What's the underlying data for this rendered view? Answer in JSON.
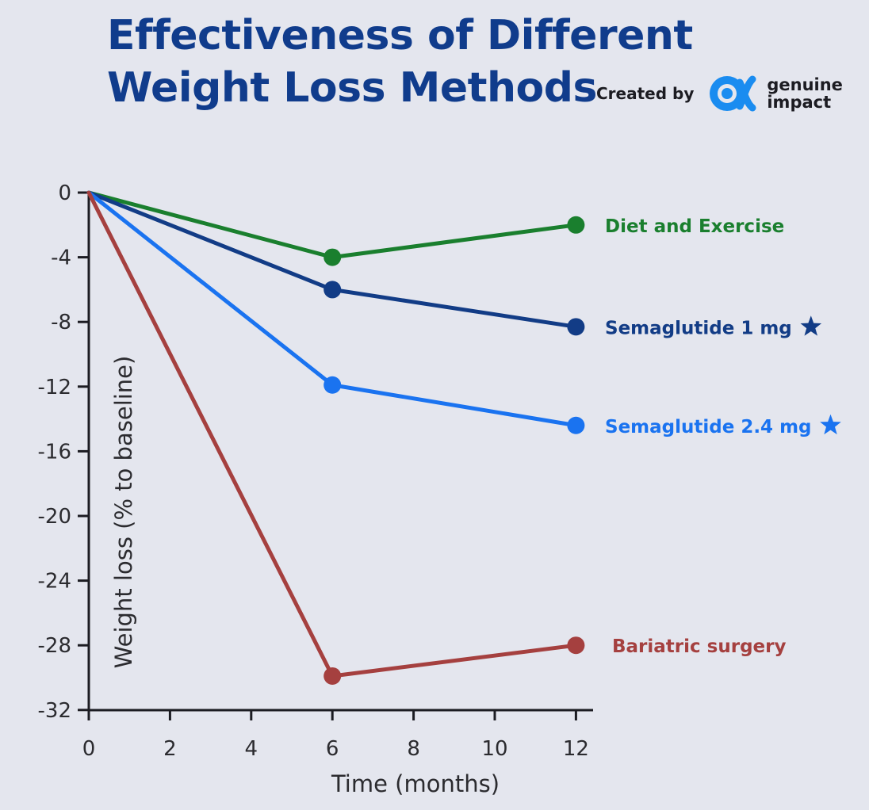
{
  "header": {
    "title_line1": "Effectiveness of Different",
    "title_line2": "Weight Loss Methods",
    "credit_label": "Created by",
    "brand_line1": "genuine",
    "brand_line2": "impact",
    "brand_icon": "genuine-impact-logo-icon"
  },
  "chart_data": {
    "type": "line",
    "xlabel": "Time (months)",
    "ylabel": "Weight loss (% to baseline)",
    "xlim": [
      0,
      12.4
    ],
    "ylim": [
      -32,
      0
    ],
    "xticks": [
      0,
      2,
      4,
      6,
      8,
      10,
      12
    ],
    "yticks": [
      0,
      -4,
      -8,
      -12,
      -16,
      -20,
      -24,
      -28,
      -32
    ],
    "grid": false,
    "legend": "direct labels at line ends",
    "series": [
      {
        "name": "Diet and Exercise",
        "color": "#1a7f2e",
        "marker_icon": null,
        "x": [
          0,
          6,
          12
        ],
        "y": [
          0,
          -4,
          -2
        ]
      },
      {
        "name": "Semaglutide 1 mg",
        "color": "#123c86",
        "marker_icon": "star-icon",
        "x": [
          0,
          6,
          12
        ],
        "y": [
          0,
          -6,
          -8.3
        ]
      },
      {
        "name": "Semaglutide 2.4 mg",
        "color": "#1a73f0",
        "marker_icon": "star-icon",
        "x": [
          0,
          6,
          12
        ],
        "y": [
          0,
          -11.9,
          -14.4
        ]
      },
      {
        "name": "Bariatric surgery",
        "color": "#a5403f",
        "marker_icon": null,
        "x": [
          0,
          6,
          12
        ],
        "y": [
          0,
          -29.9,
          -28
        ]
      }
    ]
  },
  "colors": {
    "background": "#e4e6ee",
    "title": "#103c8c",
    "axis": "#1c1c22",
    "brand": "#1a8cf0"
  }
}
